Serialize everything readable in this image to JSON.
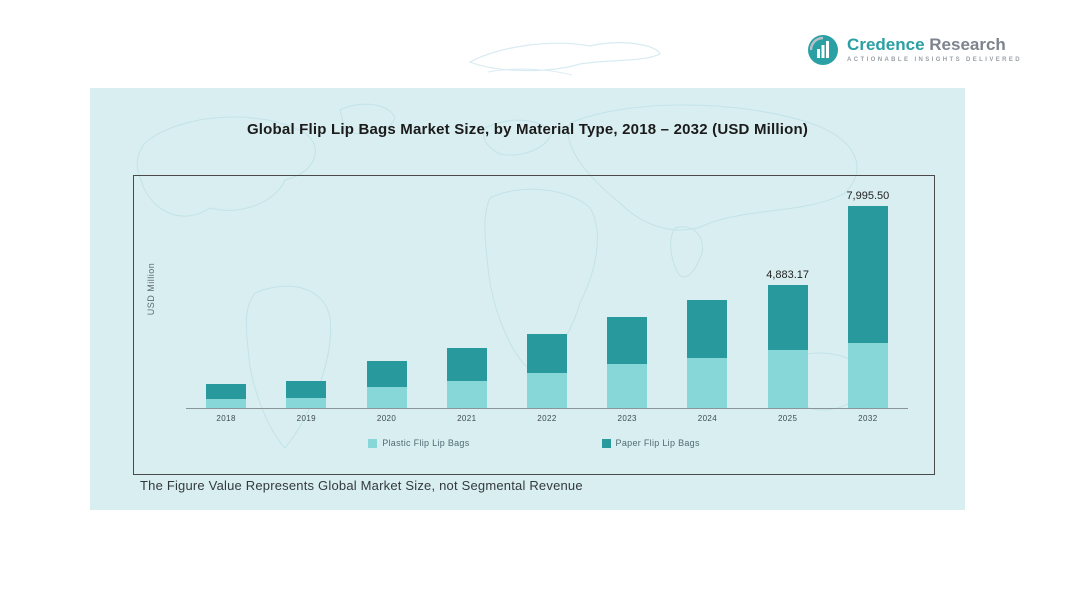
{
  "logo": {
    "brand_primary": "Credence",
    "brand_secondary": "Research",
    "tagline": "Actionable Insights Delivered",
    "accent_color": "#2aa0a5"
  },
  "panel": {
    "title": "Global Flip Lip Bags Market Size, by Material Type, 2018 – 2032 (USD Million)",
    "footnote": "The Figure Value Represents Global Market Size, not Segmental Revenue",
    "background_color": "#d9eef0"
  },
  "chart_data": {
    "type": "bar",
    "stacked": true,
    "title": "Global Flip Lip Bags Market Size, by Material Type, 2018 – 2032 (USD Million)",
    "xlabel": "",
    "ylabel": "USD Million",
    "ylim": [
      0,
      8800
    ],
    "grid": false,
    "legend_position": "bottom",
    "categories": [
      "2018",
      "2019",
      "2020",
      "2021",
      "2022",
      "2023",
      "2024",
      "2025",
      "2032"
    ],
    "series": [
      {
        "name": "Plastic Flip Lip Bags",
        "color": "#87d7d8",
        "values": [
          350,
          380,
          830,
          1070,
          1390,
          1730,
          1970,
          2290,
          2560
        ]
      },
      {
        "name": "Paper Flip Lip Bags",
        "color": "#28999c",
        "values": [
          585,
          660,
          1040,
          1320,
          1550,
          1870,
          2290,
          2593.17,
          5435.5
        ]
      }
    ],
    "totals": [
      935,
      1040,
      1870,
      2390,
      2940,
      3600,
      4260,
      4883.17,
      7995.5
    ],
    "data_labels": [
      {
        "category": "2025",
        "text": "4,883.17"
      },
      {
        "category": "2032",
        "text": "7,995.50"
      }
    ]
  }
}
